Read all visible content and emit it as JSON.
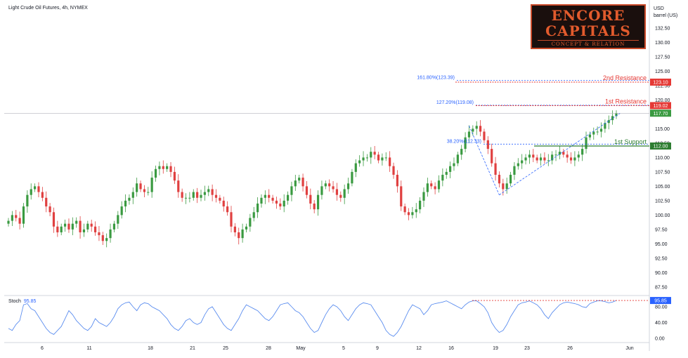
{
  "header": {
    "title": "Light Crude Oil Futures, 4h, NYMEX",
    "unit_line1": "USD",
    "unit_line2": "barrel (US)"
  },
  "logo": {
    "line1": "ENCORE",
    "line2": "CAPITALS",
    "line3": "CONCEPT & RELATION"
  },
  "stoch": {
    "label": "Stoch",
    "value": "95.85"
  },
  "colors": {
    "up": "#26a69a",
    "down": "#ef5350",
    "upCandle": "#3a9a41",
    "downCandle": "#e04040",
    "resistance": "#e53935",
    "support": "#2e7d32",
    "fib": "#2962ff",
    "stochLine": "#5b8def",
    "price": "#3a9a41"
  },
  "chart_data": {
    "type": "candlestick",
    "price_axis": {
      "ticks": [
        "132.50",
        "130.00",
        "127.50",
        "125.00",
        "122.50",
        "120.00",
        "117.50",
        "115.00",
        "112.50",
        "110.00",
        "107.50",
        "105.00",
        "102.50",
        "100.00",
        "97.50",
        "95.00",
        "92.50",
        "90.00",
        "87.50"
      ],
      "ylim": [
        86,
        134
      ]
    },
    "stoch_axis": {
      "ticks": [
        "80.00",
        "40.00",
        "0.00"
      ],
      "ylim": [
        -5,
        100
      ]
    },
    "x_axis": {
      "ticks": [
        "6",
        "11",
        "18",
        "21",
        "25",
        "28",
        "May",
        "5",
        "9",
        "12",
        "16",
        "19",
        "23",
        "26",
        "Jun"
      ]
    },
    "levels": [
      {
        "label": "2nd Resistance",
        "value": 123.1,
        "tag": "123.10",
        "kind": "resistance"
      },
      {
        "label": "1st Resistance",
        "value": 119.02,
        "tag": "119.02",
        "kind": "resistance"
      },
      {
        "label": "1st Support",
        "value": 112.0,
        "tag": "112.00",
        "kind": "support"
      }
    ],
    "fib_levels": [
      {
        "label": "161.80%(123.39)",
        "value": 123.39
      },
      {
        "label": "127.20%(119.08)",
        "value": 119.08
      },
      {
        "label": "38.20%(112.33)",
        "value": 112.33
      }
    ],
    "last_price": {
      "value": 117.7,
      "tag": "117.70"
    },
    "stoch_last": {
      "value": 95.85,
      "tag": "95.85"
    },
    "closes": [
      99.0,
      100.0,
      99.5,
      98.5,
      101.5,
      103.5,
      104.5,
      105.0,
      104.0,
      103.0,
      101.5,
      100.5,
      98.0,
      97.0,
      98.0,
      98.5,
      97.5,
      98.5,
      99.0,
      97.0,
      97.5,
      98.5,
      98.0,
      97.0,
      96.5,
      95.5,
      96.0,
      97.5,
      98.5,
      100.0,
      101.5,
      102.5,
      103.0,
      104.0,
      105.5,
      104.5,
      104.0,
      104.0,
      106.5,
      108.0,
      108.5,
      108.0,
      108.5,
      107.5,
      106.0,
      104.0,
      103.0,
      103.0,
      103.0,
      104.0,
      103.0,
      103.5,
      104.0,
      104.5,
      103.5,
      103.0,
      102.5,
      101.5,
      100.5,
      98.0,
      97.0,
      96.0,
      97.5,
      98.0,
      99.5,
      100.5,
      102.0,
      103.0,
      103.5,
      103.0,
      102.5,
      102.0,
      101.5,
      102.5,
      103.5,
      105.0,
      106.0,
      106.5,
      105.0,
      103.5,
      102.0,
      101.0,
      103.5,
      105.0,
      105.5,
      105.0,
      104.5,
      103.5,
      103.0,
      104.5,
      105.5,
      107.5,
      109.0,
      109.5,
      110.0,
      110.0,
      111.0,
      110.5,
      109.5,
      110.0,
      110.0,
      108.5,
      107.0,
      105.0,
      101.5,
      100.5,
      100.0,
      100.5,
      101.0,
      102.5,
      104.0,
      105.5,
      105.0,
      104.5,
      106.0,
      107.0,
      107.5,
      108.5,
      109.0,
      110.5,
      111.5,
      113.5,
      114.5,
      115.0,
      115.5,
      114.5,
      113.0,
      111.5,
      109.0,
      107.0,
      105.5,
      104.5,
      105.5,
      107.0,
      108.5,
      109.0,
      109.5,
      110.0,
      110.5,
      110.0,
      109.5,
      110.0,
      109.5,
      109.5,
      110.5,
      110.5,
      111.0,
      110.5,
      110.0,
      109.5,
      110.0,
      110.5,
      111.5,
      113.5,
      114.0,
      114.5,
      114.5,
      115.0,
      116.0,
      116.5,
      117.2,
      117.7
    ],
    "stoch": [
      25,
      20,
      35,
      45,
      85,
      88,
      75,
      70,
      55,
      40,
      25,
      15,
      10,
      20,
      30,
      50,
      70,
      60,
      45,
      35,
      25,
      20,
      30,
      50,
      40,
      35,
      30,
      40,
      55,
      75,
      85,
      90,
      92,
      80,
      70,
      85,
      90,
      88,
      80,
      75,
      70,
      60,
      50,
      35,
      25,
      20,
      30,
      45,
      50,
      40,
      35,
      40,
      60,
      75,
      80,
      65,
      50,
      35,
      25,
      20,
      35,
      50,
      70,
      85,
      80,
      75,
      70,
      60,
      50,
      45,
      55,
      70,
      85,
      88,
      90,
      80,
      70,
      65,
      55,
      40,
      25,
      15,
      20,
      40,
      60,
      75,
      85,
      80,
      70,
      55,
      45,
      60,
      75,
      85,
      90,
      88,
      85,
      70,
      55,
      40,
      20,
      10,
      5,
      15,
      30,
      50,
      70,
      85,
      80,
      75,
      60,
      70,
      85,
      88,
      90,
      92,
      95,
      90,
      85,
      80,
      75,
      85,
      92,
      95,
      95,
      88,
      80,
      65,
      40,
      25,
      15,
      20,
      35,
      55,
      70,
      85,
      90,
      92,
      95,
      90,
      85,
      75,
      60,
      50,
      65,
      75,
      85,
      90,
      92,
      90,
      88,
      85,
      80,
      78,
      88,
      92,
      95,
      95,
      93,
      90,
      92,
      95.85
    ]
  }
}
